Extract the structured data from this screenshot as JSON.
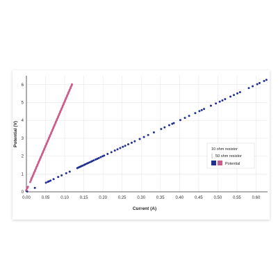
{
  "chart_data": {
    "type": "scatter",
    "title": "",
    "xlabel": "Current (A)",
    "ylabel": "Potential (V)",
    "xlim": [
      0,
      0.63
    ],
    "ylim": [
      0,
      6.5
    ],
    "x_ticks": [
      "0.00",
      "0.05",
      "0.10",
      "0.15",
      "0.20",
      "0.25",
      "0.30",
      "0.35",
      "0.40",
      "0.45",
      "0.50",
      "0.55",
      "0.60"
    ],
    "y_ticks": [
      "0",
      "1",
      "2",
      "3",
      "4",
      "5",
      "6"
    ],
    "grid": true,
    "legend_position": "right",
    "legend": {
      "entries": [
        "10 ohm resistor",
        "50 ohm resistor"
      ],
      "key_label": "Potential"
    },
    "series": [
      {
        "name": "10 ohm resistor",
        "color": "#22318f",
        "points": [
          [
            0.0,
            0.05
          ],
          [
            0.002,
            0.02
          ],
          [
            0.022,
            0.22
          ],
          [
            0.051,
            0.51
          ],
          [
            0.056,
            0.56
          ],
          [
            0.059,
            0.59
          ],
          [
            0.063,
            0.63
          ],
          [
            0.071,
            0.71
          ],
          [
            0.083,
            0.83
          ],
          [
            0.092,
            0.92
          ],
          [
            0.104,
            1.04
          ],
          [
            0.113,
            1.13
          ],
          [
            0.133,
            1.33
          ],
          [
            0.136,
            1.36
          ],
          [
            0.139,
            1.39
          ],
          [
            0.141,
            1.41
          ],
          [
            0.144,
            1.44
          ],
          [
            0.147,
            1.47
          ],
          [
            0.151,
            1.51
          ],
          [
            0.154,
            1.54
          ],
          [
            0.158,
            1.58
          ],
          [
            0.161,
            1.61
          ],
          [
            0.165,
            1.65
          ],
          [
            0.169,
            1.69
          ],
          [
            0.172,
            1.72
          ],
          [
            0.176,
            1.76
          ],
          [
            0.181,
            1.81
          ],
          [
            0.185,
            1.85
          ],
          [
            0.189,
            1.89
          ],
          [
            0.194,
            1.94
          ],
          [
            0.199,
            1.99
          ],
          [
            0.203,
            2.03
          ],
          [
            0.212,
            2.12
          ],
          [
            0.222,
            2.22
          ],
          [
            0.231,
            2.31
          ],
          [
            0.238,
            2.38
          ],
          [
            0.245,
            2.45
          ],
          [
            0.252,
            2.52
          ],
          [
            0.258,
            2.58
          ],
          [
            0.266,
            2.66
          ],
          [
            0.275,
            2.75
          ],
          [
            0.283,
            2.83
          ],
          [
            0.296,
            2.96
          ],
          [
            0.307,
            3.07
          ],
          [
            0.318,
            3.18
          ],
          [
            0.333,
            3.33
          ],
          [
            0.352,
            3.52
          ],
          [
            0.361,
            3.61
          ],
          [
            0.373,
            3.73
          ],
          [
            0.381,
            3.81
          ],
          [
            0.385,
            3.85
          ],
          [
            0.402,
            4.02
          ],
          [
            0.414,
            4.14
          ],
          [
            0.425,
            4.25
          ],
          [
            0.441,
            4.41
          ],
          [
            0.452,
            4.52
          ],
          [
            0.458,
            4.58
          ],
          [
            0.464,
            4.64
          ],
          [
            0.482,
            4.82
          ],
          [
            0.495,
            4.95
          ],
          [
            0.505,
            5.05
          ],
          [
            0.512,
            5.12
          ],
          [
            0.519,
            5.19
          ],
          [
            0.533,
            5.33
          ],
          [
            0.542,
            5.42
          ],
          [
            0.551,
            5.51
          ],
          [
            0.558,
            5.58
          ],
          [
            0.581,
            5.81
          ],
          [
            0.591,
            5.91
          ],
          [
            0.603,
            6.03
          ],
          [
            0.609,
            6.09
          ],
          [
            0.621,
            6.21
          ],
          [
            0.627,
            6.27
          ]
        ]
      },
      {
        "name": "50 ohm resistor",
        "color": "#cc5a8a",
        "points": [
          [
            0.0,
            0.1
          ],
          [
            0.002,
            0.2
          ],
          [
            0.004,
            0.28
          ],
          [
            0.01,
            0.55
          ],
          [
            0.012,
            0.65
          ],
          [
            0.013,
            0.72
          ],
          [
            0.014,
            0.78
          ],
          [
            0.016,
            0.85
          ],
          [
            0.017,
            0.92
          ],
          [
            0.019,
            1.0
          ],
          [
            0.02,
            1.08
          ],
          [
            0.022,
            1.15
          ],
          [
            0.023,
            1.22
          ],
          [
            0.025,
            1.3
          ],
          [
            0.026,
            1.38
          ],
          [
            0.028,
            1.45
          ],
          [
            0.029,
            1.52
          ],
          [
            0.031,
            1.6
          ],
          [
            0.032,
            1.68
          ],
          [
            0.034,
            1.75
          ],
          [
            0.035,
            1.82
          ],
          [
            0.037,
            1.9
          ],
          [
            0.038,
            1.97
          ],
          [
            0.04,
            2.05
          ],
          [
            0.041,
            2.12
          ],
          [
            0.043,
            2.2
          ],
          [
            0.044,
            2.27
          ],
          [
            0.046,
            2.35
          ],
          [
            0.047,
            2.42
          ],
          [
            0.049,
            2.5
          ],
          [
            0.05,
            2.57
          ],
          [
            0.052,
            2.65
          ],
          [
            0.053,
            2.72
          ],
          [
            0.055,
            2.8
          ],
          [
            0.056,
            2.87
          ],
          [
            0.058,
            2.95
          ],
          [
            0.059,
            3.02
          ],
          [
            0.061,
            3.1
          ],
          [
            0.062,
            3.17
          ],
          [
            0.064,
            3.25
          ],
          [
            0.065,
            3.32
          ],
          [
            0.067,
            3.4
          ],
          [
            0.068,
            3.47
          ],
          [
            0.07,
            3.55
          ],
          [
            0.071,
            3.62
          ],
          [
            0.073,
            3.7
          ],
          [
            0.074,
            3.77
          ],
          [
            0.076,
            3.85
          ],
          [
            0.077,
            3.92
          ],
          [
            0.079,
            4.0
          ],
          [
            0.08,
            4.07
          ],
          [
            0.082,
            4.15
          ],
          [
            0.083,
            4.22
          ],
          [
            0.085,
            4.3
          ],
          [
            0.086,
            4.37
          ],
          [
            0.088,
            4.45
          ],
          [
            0.089,
            4.52
          ],
          [
            0.091,
            4.6
          ],
          [
            0.092,
            4.67
          ],
          [
            0.094,
            4.75
          ],
          [
            0.095,
            4.82
          ],
          [
            0.097,
            4.9
          ],
          [
            0.098,
            4.97
          ],
          [
            0.1,
            5.05
          ],
          [
            0.101,
            5.12
          ],
          [
            0.103,
            5.2
          ],
          [
            0.104,
            5.27
          ],
          [
            0.106,
            5.35
          ],
          [
            0.107,
            5.42
          ],
          [
            0.109,
            5.5
          ],
          [
            0.11,
            5.57
          ],
          [
            0.112,
            5.65
          ],
          [
            0.113,
            5.72
          ],
          [
            0.115,
            5.8
          ],
          [
            0.116,
            5.87
          ],
          [
            0.118,
            5.95
          ],
          [
            0.119,
            6.02
          ]
        ]
      }
    ]
  }
}
